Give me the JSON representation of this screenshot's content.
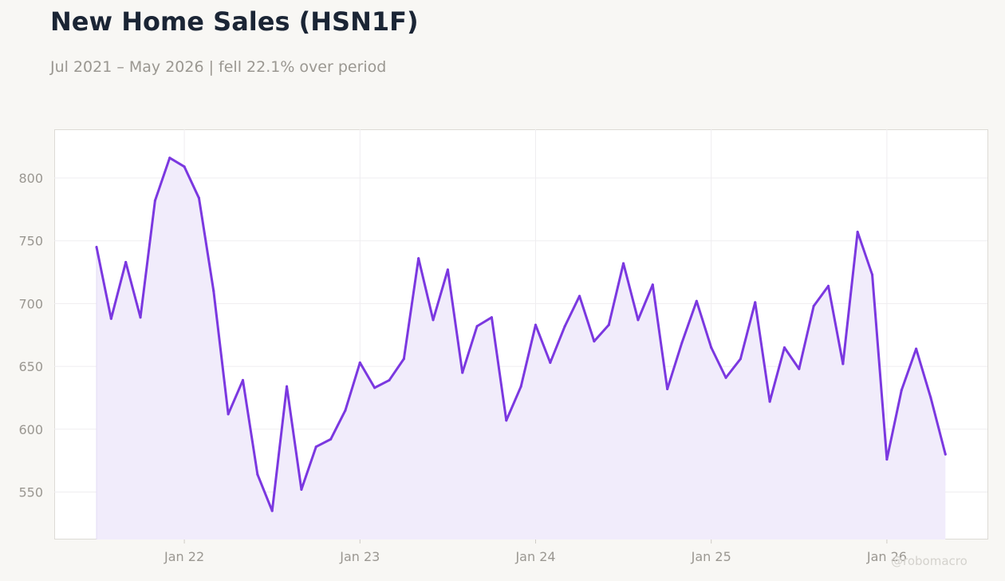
{
  "title": "New Home Sales (HSN1F)",
  "subtitle": "Jul 2021 – May 2026 | fell 22.1% over period",
  "watermark": "@robomacro",
  "colors": {
    "line": "#7b38e0",
    "fill": "#f1ecfb",
    "plot_bg": "#ffffff",
    "grid": "#efedf0",
    "tick_text": "#9a9791"
  },
  "chart_data": {
    "type": "area",
    "x_start": "2021-07",
    "frequency": "monthly",
    "values": [
      745,
      688,
      733,
      689,
      782,
      816,
      809,
      784,
      710,
      612,
      639,
      564,
      535,
      634,
      552,
      586,
      592,
      615,
      653,
      633,
      639,
      656,
      736,
      687,
      727,
      645,
      682,
      689,
      607,
      634,
      683,
      653,
      682,
      706,
      670,
      683,
      732,
      687,
      715,
      632,
      669,
      702,
      665,
      641,
      656,
      701,
      622,
      665,
      648,
      698,
      714,
      652,
      757,
      723,
      576,
      631,
      664,
      625,
      580
    ],
    "ylim": [
      510,
      835
    ],
    "y_ticks": [
      550,
      600,
      650,
      700,
      750,
      800
    ],
    "x_ticks": [
      {
        "label": "Jan 22",
        "date": "2022-01"
      },
      {
        "label": "Jan 23",
        "date": "2023-01"
      },
      {
        "label": "Jan 24",
        "date": "2024-01"
      },
      {
        "label": "Jan 25",
        "date": "2025-01"
      },
      {
        "label": "Jan 26",
        "date": "2026-01"
      }
    ],
    "grid": true,
    "legend": "none"
  }
}
